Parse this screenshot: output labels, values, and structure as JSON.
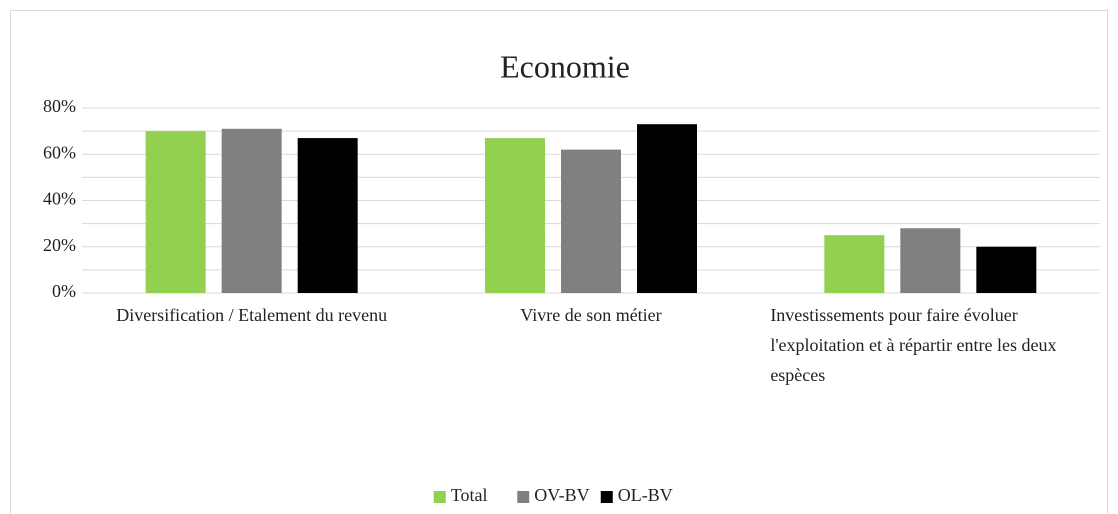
{
  "chart_data": {
    "type": "bar",
    "title": "Economie",
    "categories": [
      "Diversification / Etalement du revenu",
      "Vivre de son métier",
      "Investissements pour faire évoluer l'exploitation et à répartir entre les deux espèces"
    ],
    "series": [
      {
        "name": "Total",
        "color": "#92d050",
        "values": [
          70,
          67,
          25
        ]
      },
      {
        "name": "OV-BV",
        "color": "#808080",
        "values": [
          71,
          62,
          28
        ]
      },
      {
        "name": "OL-BV",
        "color": "#000000",
        "values": [
          67,
          73,
          20
        ]
      }
    ],
    "ylim": [
      0,
      80
    ],
    "yticks": [
      {
        "value": 0,
        "label": "0%"
      },
      {
        "value": 20,
        "label": "20%"
      },
      {
        "value": 40,
        "label": "40%"
      },
      {
        "value": 60,
        "label": "60%"
      },
      {
        "value": 80,
        "label": "80%"
      }
    ],
    "minor_yticks": [
      10,
      30,
      50,
      70
    ],
    "grid": true,
    "legend": "bottom"
  }
}
